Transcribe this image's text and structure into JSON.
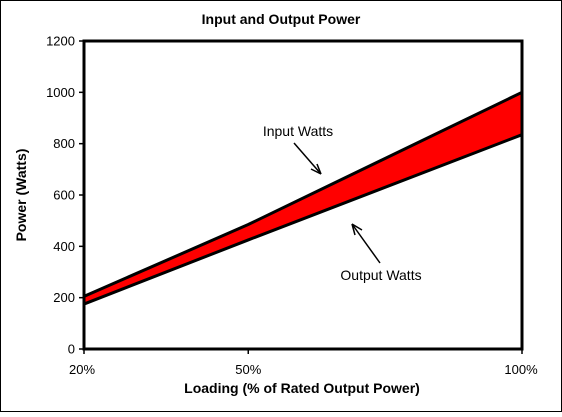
{
  "chart_data": {
    "type": "area",
    "title": "Input and Output Power",
    "xlabel": "Loading (% of Rated Output Power)",
    "ylabel": "Power (Watts)",
    "categories": [
      "20%",
      "50%",
      "100%"
    ],
    "x": [
      20,
      50,
      100
    ],
    "series": [
      {
        "name": "Input Watts",
        "values": [
          205,
          485,
          1000
        ]
      },
      {
        "name": "Output Watts",
        "values": [
          175,
          425,
          835
        ]
      }
    ],
    "ylim": [
      0,
      1200
    ],
    "yticks": [
      "0",
      "200",
      "400",
      "600",
      "800",
      "1000",
      "1200"
    ],
    "grid": false,
    "legend": "none",
    "fill_between_series": true,
    "colors": {
      "fill": "#ff0000",
      "line": "#000000",
      "background": "#ffffff"
    }
  }
}
